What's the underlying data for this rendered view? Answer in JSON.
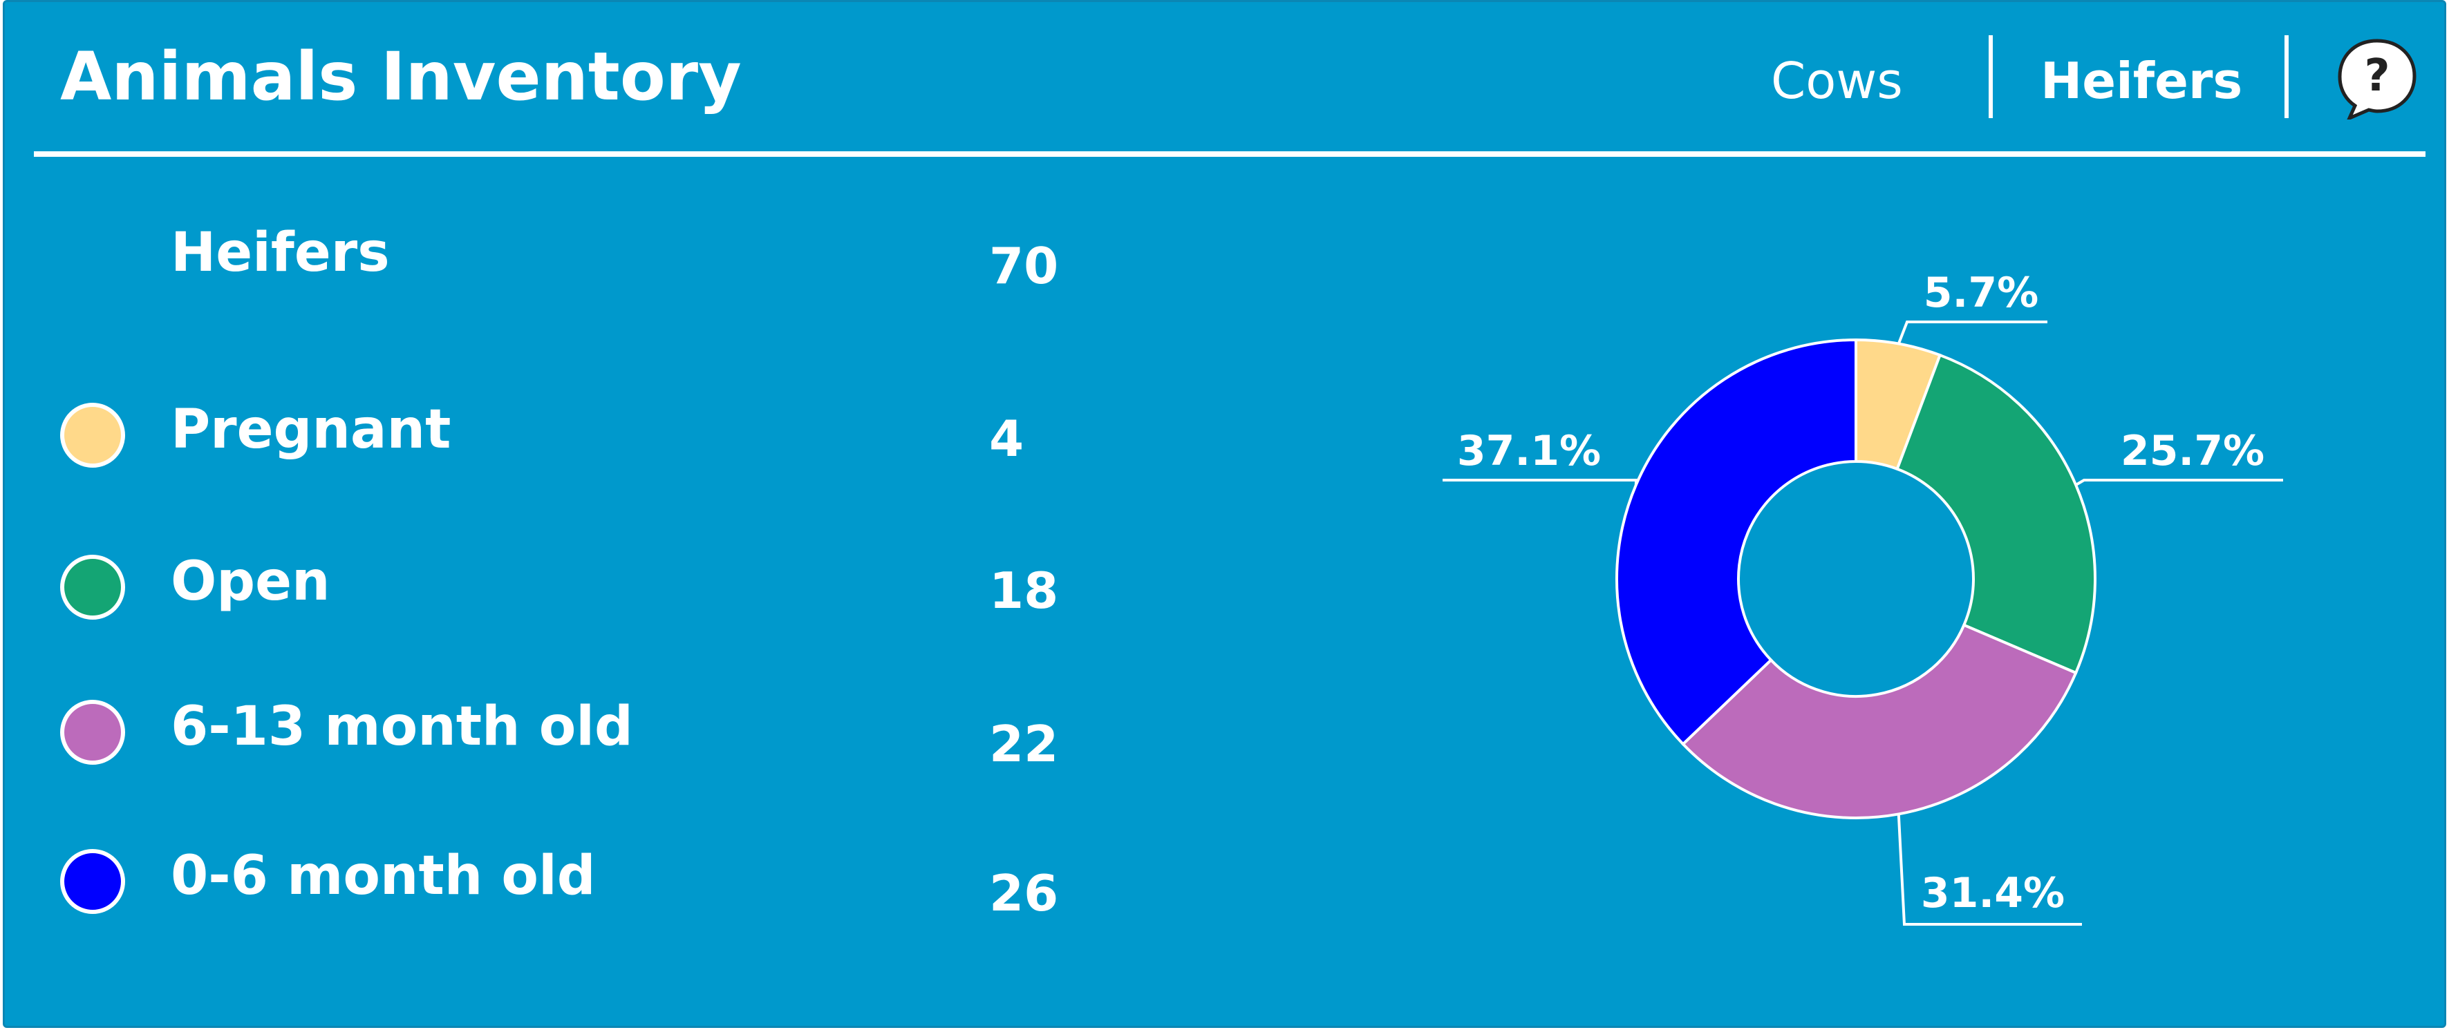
{
  "header": {
    "title": "Animals Inventory",
    "tabs": [
      {
        "label": "Cows",
        "active": false
      },
      {
        "label": "Heifers",
        "active": true
      }
    ],
    "help_icon": "question-bubble-icon"
  },
  "summary": {
    "label": "Heifers",
    "total": "70"
  },
  "categories": [
    {
      "label": "Pregnant",
      "value": "4",
      "color": "#FFD98A"
    },
    {
      "label": "Open",
      "value": "18",
      "color": "#14A574"
    },
    {
      "label": "6-13 month old",
      "value": "22",
      "color": "#BC6BBB"
    },
    {
      "label": "0-6 month old",
      "value": "26",
      "color": "#0000FF"
    }
  ],
  "chart_data": {
    "type": "pie",
    "donut": true,
    "categories": [
      "Pregnant",
      "Open",
      "6-13 month old",
      "0-6 month old"
    ],
    "values": [
      4,
      18,
      22,
      26
    ],
    "percent_labels": [
      "5.7%",
      "25.7%",
      "31.4%",
      "37.1%"
    ],
    "colors": [
      "#FFD98A",
      "#14A574",
      "#BC6BBB",
      "#0000FF"
    ]
  },
  "colors": {
    "background": "#0099CC",
    "text": "#FFFFFF"
  }
}
